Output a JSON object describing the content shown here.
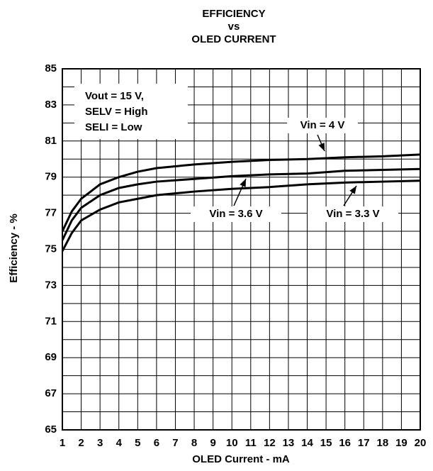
{
  "chart_data": {
    "type": "line",
    "title": [
      "EFFICIENCY",
      "vs",
      "OLED CURRENT"
    ],
    "x_label": "OLED Current - mA",
    "y_label": "Efficiency - %",
    "annotation": [
      "Vout = 15 V,",
      "SELV = High",
      "SELI = Low"
    ],
    "x": [
      1,
      1.5,
      2,
      3,
      4,
      5,
      6,
      8,
      10,
      12,
      14,
      16,
      18,
      20
    ],
    "series": [
      {
        "name": "Vin = 4 V",
        "color": "#000000",
        "values": [
          76.0,
          77.1,
          77.8,
          78.6,
          79.0,
          79.3,
          79.5,
          79.7,
          79.85,
          79.95,
          80.0,
          80.1,
          80.15,
          80.25
        ]
      },
      {
        "name": "Vin = 3.6 V",
        "color": "#000000",
        "values": [
          75.5,
          76.6,
          77.3,
          78.0,
          78.4,
          78.6,
          78.75,
          78.9,
          79.05,
          79.15,
          79.2,
          79.35,
          79.4,
          79.45
        ]
      },
      {
        "name": "Vin = 3.3 V",
        "color": "#000000",
        "values": [
          74.9,
          75.9,
          76.6,
          77.2,
          77.6,
          77.8,
          78.0,
          78.2,
          78.35,
          78.45,
          78.6,
          78.7,
          78.75,
          78.8
        ]
      }
    ],
    "xlim": [
      1,
      20
    ],
    "ylim": [
      65,
      85
    ],
    "xticks": [
      1,
      2,
      3,
      4,
      5,
      6,
      7,
      8,
      9,
      10,
      11,
      12,
      13,
      14,
      15,
      16,
      17,
      18,
      19,
      20
    ],
    "yticks": [
      65,
      67,
      69,
      71,
      73,
      75,
      77,
      79,
      81,
      83,
      85
    ],
    "yminorticks": [
      66,
      68,
      70,
      72,
      74,
      76,
      78,
      80,
      82,
      84
    ],
    "grid": true
  }
}
